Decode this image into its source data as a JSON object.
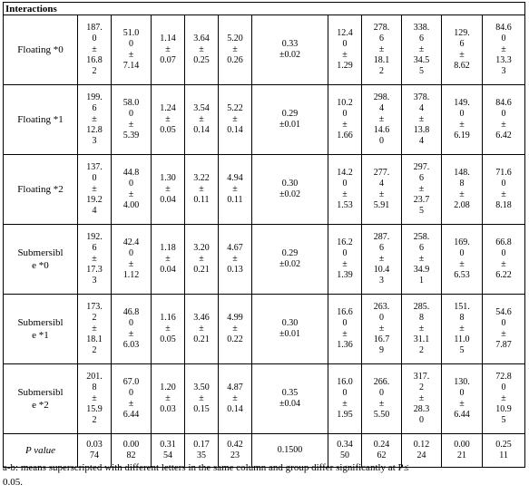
{
  "header": "Interactions",
  "rows": [
    {
      "label": "Floating *0",
      "cells": [
        "187.\n0\n±\n16.8\n2",
        "51.0\n0\n±\n7.14",
        "1.14\n±\n0.07",
        "3.64\n±\n0.25",
        "5.20\n±\n0.26",
        "0.33\n±0.02",
        "12.4\n0\n±\n1.29",
        "278.\n6\n±\n18.1\n2",
        "338.\n6\n±\n34.5\n5",
        "129.\n6\n±\n8.62",
        "84.6\n0\n±\n13.3\n3"
      ]
    },
    {
      "label": "Floating *1",
      "cells": [
        "199.\n6\n±\n12.8\n3",
        "58.0\n0\n±\n5.39",
        "1.24\n±\n0.05",
        "3.54\n±\n0.14",
        "5.22\n±\n0.14",
        "0.29\n±0.01",
        "10.2\n0\n±\n1.66",
        "298.\n4\n±\n14.6\n0",
        "378.\n4\n±\n13.8\n4",
        "149.\n0\n±\n6.19",
        "84.6\n0\n±\n6.42"
      ]
    },
    {
      "label": "Floating *2",
      "cells": [
        "137.\n0\n±\n19.2\n4",
        "44.8\n0\n±\n4.00",
        "1.30\n±\n0.04",
        "3.22\n±\n0.11",
        "4.94\n±\n0.11",
        "0.30\n±0.02",
        "14.2\n0\n±\n1.53",
        "277.\n4\n±\n5.91",
        "297.\n6\n±\n23.7\n5",
        "148.\n8\n±\n2.08",
        "71.6\n0\n±\n8.18"
      ]
    },
    {
      "label": "Submersibl\ne *0",
      "cells": [
        "192.\n6\n±\n17.3\n3",
        "42.4\n0\n±\n1.12",
        "1.18\n±\n0.04",
        "3.20\n±\n0.21",
        "4.67\n±\n0.13",
        "0.29\n±0.02",
        "16.2\n0\n±\n1.39",
        "287.\n6\n±\n10.4\n3",
        "258.\n6\n±\n34.9\n1",
        "169.\n0\n±\n6.53",
        "66.8\n0\n±\n6.22"
      ]
    },
    {
      "label": "Submersibl\ne *1",
      "cells": [
        "173.\n2\n±\n18.1\n2",
        "46.8\n0\n±\n6.03",
        "1.16\n±\n0.05",
        "3.46\n±\n0.21",
        "4.99\n±\n0.22",
        "0.30\n±0.01",
        "16.6\n0\n±\n1.36",
        "263.\n0\n±\n16.7\n9",
        "285.\n8\n±\n31.1\n2",
        "151.\n8\n±\n11.0\n5",
        "54.6\n0\n±\n7.87"
      ]
    },
    {
      "label": "Submersibl\ne *2",
      "cells": [
        "201.\n8\n±\n15.9\n2",
        "67.0\n0\n±\n6.44",
        "1.20\n±\n0.03",
        "3.50\n±\n0.15",
        "4.87\n±\n0.14",
        "0.35\n±0.04",
        "16.0\n0\n±\n1.95",
        "266.\n0\n±\n5.50",
        "317.\n2\n±\n28.3\n0",
        "130.\n0\n±\n6.44",
        "72.8\n0\n±\n10.9\n5"
      ]
    }
  ],
  "pvalue": {
    "label": "P value",
    "cells": [
      "0.03\n74",
      "0.00\n82",
      "0.31\n54",
      "0.17\n35",
      "0.42\n23",
      "0.1500",
      "0.34\n50",
      "0.24\n62",
      "0.12\n24",
      "0.00\n21",
      "0.25\n11"
    ]
  },
  "footnote": "a-b: means superscripted with different letters in the same column and group differ significantly at P≤\n0.05."
}
